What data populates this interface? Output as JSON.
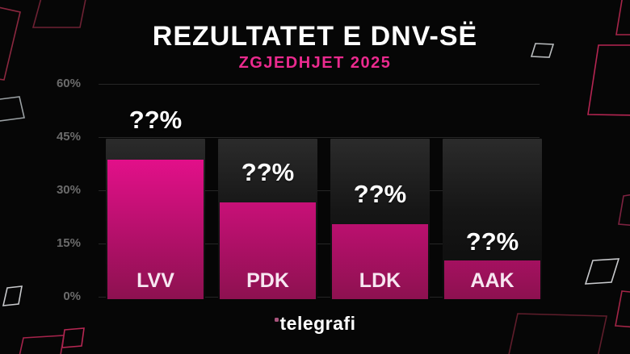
{
  "header": {
    "title": "REZULTATET E DNV-SË",
    "subtitle": "ZGJEDHJET 2025"
  },
  "chart_data": {
    "type": "bar",
    "title": "REZULTATET E DNV-SË",
    "subtitle": "ZGJEDHJET 2025",
    "categories": [
      "LVV",
      "PDK",
      "LDK",
      "AAK"
    ],
    "value_labels": [
      "??%",
      "??%",
      "??%",
      "??%"
    ],
    "estimated_values_pct": [
      39.3,
      27.2,
      21.1,
      10.8
    ],
    "values_hidden": true,
    "y_ticks": [
      "60%",
      "45%",
      "30%",
      "15%",
      "0%"
    ],
    "ylim": [
      0,
      60
    ],
    "grid": true,
    "legend": false,
    "xlabel": "",
    "ylabel": ""
  },
  "footer": {
    "logo": "telegrafi"
  },
  "colors": {
    "background": "#060606",
    "title": "#ffffff",
    "subtitle": "#ea2a8e",
    "bar_gradient_top": "#ef0f92",
    "bar_gradient_bottom": "#8d1150",
    "bar_track": "#1e1e1e",
    "gridline": "#262626",
    "tick_text": "#6b6b6b",
    "value_label": "#ffffff",
    "category_label": "#f7e6f1",
    "logo_dot": "#a8537c"
  }
}
